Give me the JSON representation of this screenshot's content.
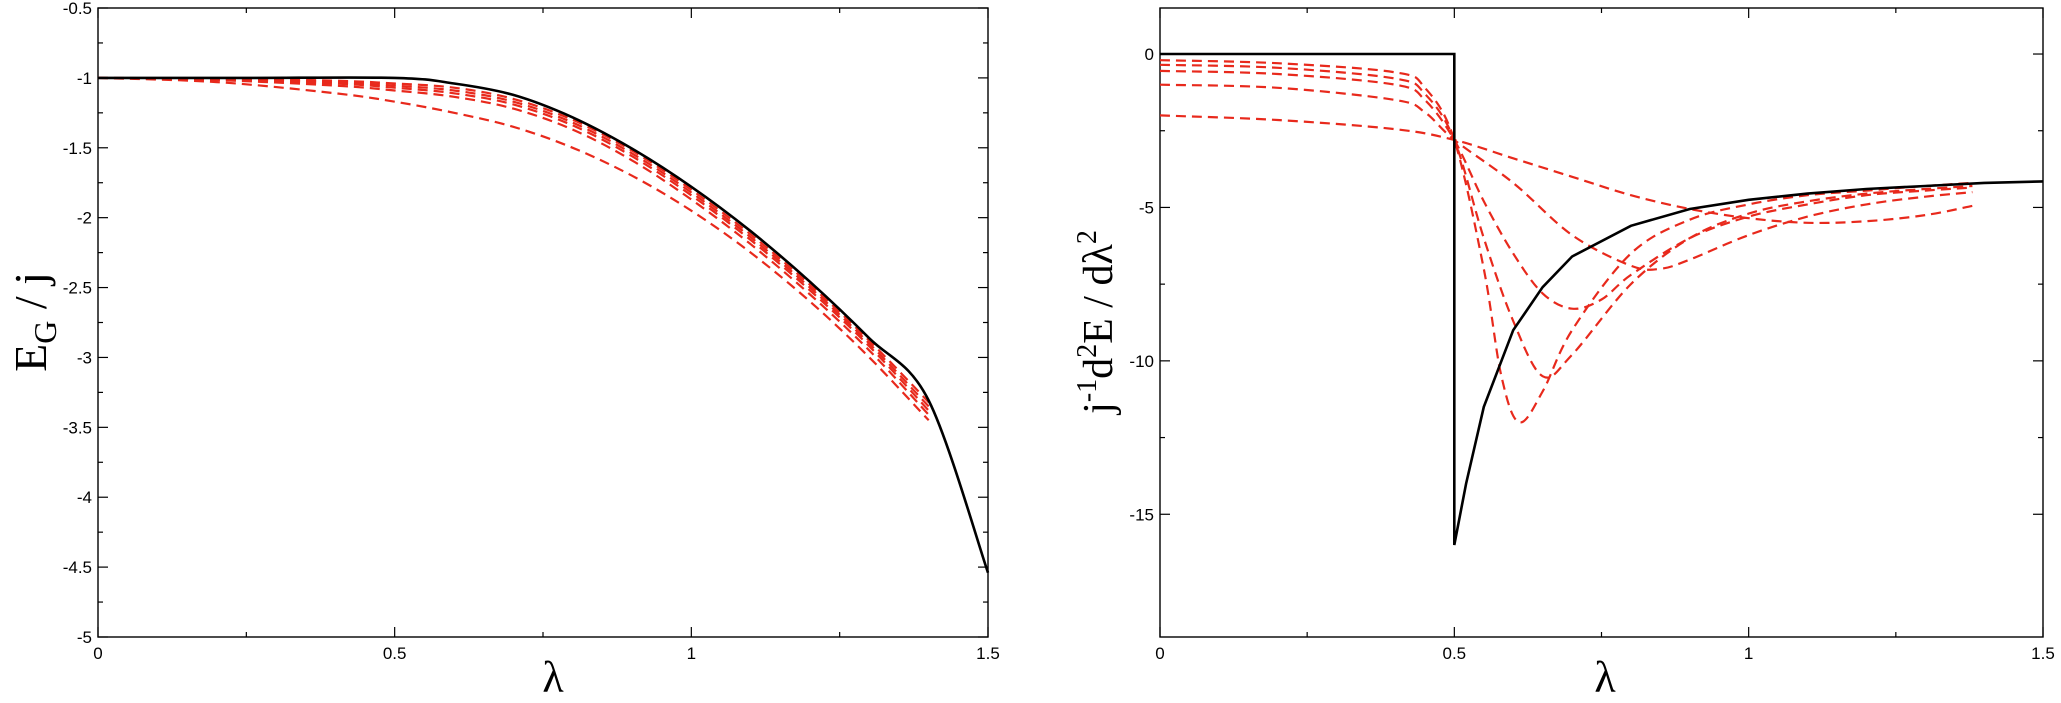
{
  "chart_data": [
    {
      "type": "line",
      "xlabel": "λ",
      "ylabel_main": "E",
      "ylabel_sub": "G",
      "ylabel_rest": " / j",
      "xlim": [
        0,
        1.5
      ],
      "ylim": [
        -5,
        -0.5
      ],
      "xticks": [
        0,
        0.5,
        1,
        1.5
      ],
      "xtick_labels": [
        "0",
        "0.5",
        "1",
        "1.5"
      ],
      "yticks": [
        -5,
        -4.5,
        -4,
        -3.5,
        -3,
        -2.5,
        -2,
        -1.5,
        -1,
        -0.5
      ],
      "ytick_labels": [
        "-5",
        "-4.5",
        "-4",
        "-3.5",
        "-3",
        "-2.5",
        "-2",
        "-1.5",
        "-1",
        "-0.5"
      ],
      "grid": false,
      "colors": {
        "exact": "#000000",
        "approx": "#e8291c"
      },
      "series": [
        {
          "style": "solid",
          "x": [
            0,
            0.25,
            0.5,
            0.6,
            0.7,
            0.8,
            0.9,
            1.0,
            1.1,
            1.2,
            1.3,
            1.4,
            1.5
          ],
          "values": [
            -1.0,
            -1.0,
            -1.0,
            -1.04,
            -1.122,
            -1.283,
            -1.506,
            -1.779,
            -2.097,
            -2.459,
            -2.863,
            -3.308,
            -4.54
          ]
        },
        {
          "style": "dashed",
          "x": [
            0,
            0.2,
            0.4,
            0.5,
            0.6,
            0.7,
            0.8,
            0.9,
            1.0,
            1.1,
            1.2,
            1.3,
            1.4
          ],
          "values": [
            -1.0,
            -1.005,
            -1.02,
            -1.04,
            -1.07,
            -1.15,
            -1.3,
            -1.52,
            -1.8,
            -2.12,
            -2.48,
            -2.88,
            -3.32
          ]
        },
        {
          "style": "dashed",
          "x": [
            0,
            0.2,
            0.4,
            0.5,
            0.6,
            0.7,
            0.8,
            0.9,
            1.0,
            1.1,
            1.2,
            1.3,
            1.4
          ],
          "values": [
            -1.0,
            -1.008,
            -1.03,
            -1.055,
            -1.09,
            -1.17,
            -1.32,
            -1.54,
            -1.82,
            -2.14,
            -2.5,
            -2.9,
            -3.35
          ]
        },
        {
          "style": "dashed",
          "x": [
            0,
            0.2,
            0.4,
            0.5,
            0.6,
            0.7,
            0.8,
            0.9,
            1.0,
            1.1,
            1.2,
            1.3,
            1.4
          ],
          "values": [
            -1.0,
            -1.012,
            -1.04,
            -1.07,
            -1.11,
            -1.19,
            -1.34,
            -1.56,
            -1.84,
            -2.16,
            -2.52,
            -2.92,
            -3.38
          ]
        },
        {
          "style": "dashed",
          "x": [
            0,
            0.2,
            0.4,
            0.5,
            0.6,
            0.7,
            0.8,
            0.9,
            1.0,
            1.1,
            1.2,
            1.3,
            1.4
          ],
          "values": [
            -1.0,
            -1.016,
            -1.055,
            -1.09,
            -1.135,
            -1.22,
            -1.37,
            -1.59,
            -1.87,
            -2.19,
            -2.55,
            -2.95,
            -3.41
          ]
        },
        {
          "style": "dashed",
          "x": [
            0,
            0.2,
            0.4,
            0.5,
            0.6,
            0.7,
            0.8,
            0.9,
            1.0,
            1.1,
            1.2,
            1.3,
            1.4
          ],
          "values": [
            -1.0,
            -1.03,
            -1.11,
            -1.17,
            -1.25,
            -1.35,
            -1.5,
            -1.7,
            -1.95,
            -2.25,
            -2.6,
            -3.0,
            -3.45
          ]
        }
      ]
    },
    {
      "type": "line",
      "xlabel": "λ",
      "ylabel_pre": "j",
      "ylabel_sup1": "-1",
      "ylabel_mid1": "d",
      "ylabel_sup2": "2",
      "ylabel_mid2": "E / dλ",
      "ylabel_sup3": "2",
      "xlim": [
        0,
        1.5
      ],
      "ylim": [
        -19,
        1.5
      ],
      "xticks": [
        0,
        0.5,
        1,
        1.5
      ],
      "xtick_labels": [
        "0",
        "0.5",
        "1",
        "1.5"
      ],
      "yticks": [
        0,
        -5,
        -10,
        -15
      ],
      "ytick_labels": [
        "0",
        "-5",
        "-10",
        "-15"
      ],
      "grid": false,
      "colors": {
        "exact": "#000000",
        "approx": "#e8291c"
      },
      "series": [
        {
          "style": "solid",
          "x": [
            0,
            0.5,
            0.5,
            0.52,
            0.55,
            0.6,
            0.65,
            0.7,
            0.8,
            0.9,
            1.0,
            1.1,
            1.2,
            1.3,
            1.4,
            1.5
          ],
          "values": [
            0,
            0,
            -16,
            -14.0,
            -11.5,
            -9.0,
            -7.6,
            -6.6,
            -5.6,
            -5.05,
            -4.75,
            -4.55,
            -4.4,
            -4.3,
            -4.2,
            -4.15
          ]
        },
        {
          "style": "dashed",
          "x": [
            0,
            0.2,
            0.4,
            0.45,
            0.5,
            0.55,
            0.58,
            0.61,
            0.65,
            0.7,
            0.8,
            0.9,
            1.0,
            1.1,
            1.2,
            1.3,
            1.38
          ],
          "values": [
            -0.2,
            -0.3,
            -0.6,
            -1.1,
            -2.8,
            -7.0,
            -10.5,
            -12.0,
            -11.0,
            -9.0,
            -6.5,
            -5.4,
            -4.9,
            -4.6,
            -4.45,
            -4.3,
            -4.2
          ]
        },
        {
          "style": "dashed",
          "x": [
            0,
            0.2,
            0.4,
            0.45,
            0.5,
            0.55,
            0.6,
            0.65,
            0.7,
            0.8,
            0.9,
            1.0,
            1.1,
            1.2,
            1.3,
            1.38
          ],
          "values": [
            -0.35,
            -0.45,
            -0.8,
            -1.3,
            -2.8,
            -6.0,
            -8.7,
            -10.5,
            -9.8,
            -7.5,
            -6.0,
            -5.2,
            -4.8,
            -4.55,
            -4.4,
            -4.3
          ]
        },
        {
          "style": "dashed",
          "x": [
            0,
            0.2,
            0.4,
            0.45,
            0.5,
            0.55,
            0.6,
            0.65,
            0.7,
            0.75,
            0.8,
            0.9,
            1.0,
            1.1,
            1.2,
            1.3,
            1.38
          ],
          "values": [
            -0.55,
            -0.65,
            -1.0,
            -1.5,
            -2.8,
            -4.8,
            -6.5,
            -7.8,
            -8.3,
            -8.0,
            -7.2,
            -6.0,
            -5.3,
            -4.9,
            -4.6,
            -4.45,
            -4.35
          ]
        },
        {
          "style": "dashed",
          "x": [
            0,
            0.2,
            0.4,
            0.45,
            0.5,
            0.6,
            0.7,
            0.8,
            0.85,
            0.9,
            1.0,
            1.1,
            1.2,
            1.3,
            1.38
          ],
          "values": [
            -1.0,
            -1.1,
            -1.5,
            -1.9,
            -2.8,
            -4.2,
            -5.9,
            -6.9,
            -7.0,
            -6.7,
            -5.9,
            -5.3,
            -4.9,
            -4.65,
            -4.5
          ]
        },
        {
          "style": "dashed",
          "x": [
            0,
            0.2,
            0.4,
            0.5,
            0.6,
            0.7,
            0.8,
            0.9,
            1.0,
            1.1,
            1.2,
            1.3,
            1.38
          ],
          "values": [
            -2.0,
            -2.15,
            -2.45,
            -2.8,
            -3.4,
            -4.0,
            -4.6,
            -5.05,
            -5.35,
            -5.5,
            -5.45,
            -5.25,
            -4.95
          ]
        }
      ]
    }
  ]
}
